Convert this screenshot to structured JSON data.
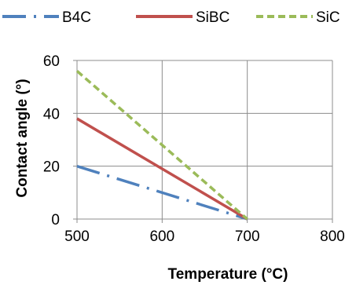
{
  "chart_data": {
    "type": "line",
    "xlabel": "Temperature (°C)",
    "ylabel": "Contact  angle (°)",
    "xlim": [
      500,
      800
    ],
    "ylim": [
      0,
      60
    ],
    "x_ticks": [
      "500",
      "600",
      "700",
      "800"
    ],
    "y_ticks": [
      "0",
      "20",
      "40",
      "60"
    ],
    "grid": true,
    "legend_position": "top",
    "series": [
      {
        "name": "B4C",
        "color": "#4f81bd",
        "line_style": "long-dash-dot",
        "x": [
          500,
          700
        ],
        "y": [
          20,
          0
        ]
      },
      {
        "name": "SiBC",
        "color": "#c0504d",
        "line_style": "solid",
        "x": [
          500,
          700
        ],
        "y": [
          38,
          0
        ]
      },
      {
        "name": "SiC",
        "color": "#9bbb59",
        "line_style": "dashed",
        "x": [
          500,
          700
        ],
        "y": [
          56,
          0
        ]
      }
    ]
  }
}
